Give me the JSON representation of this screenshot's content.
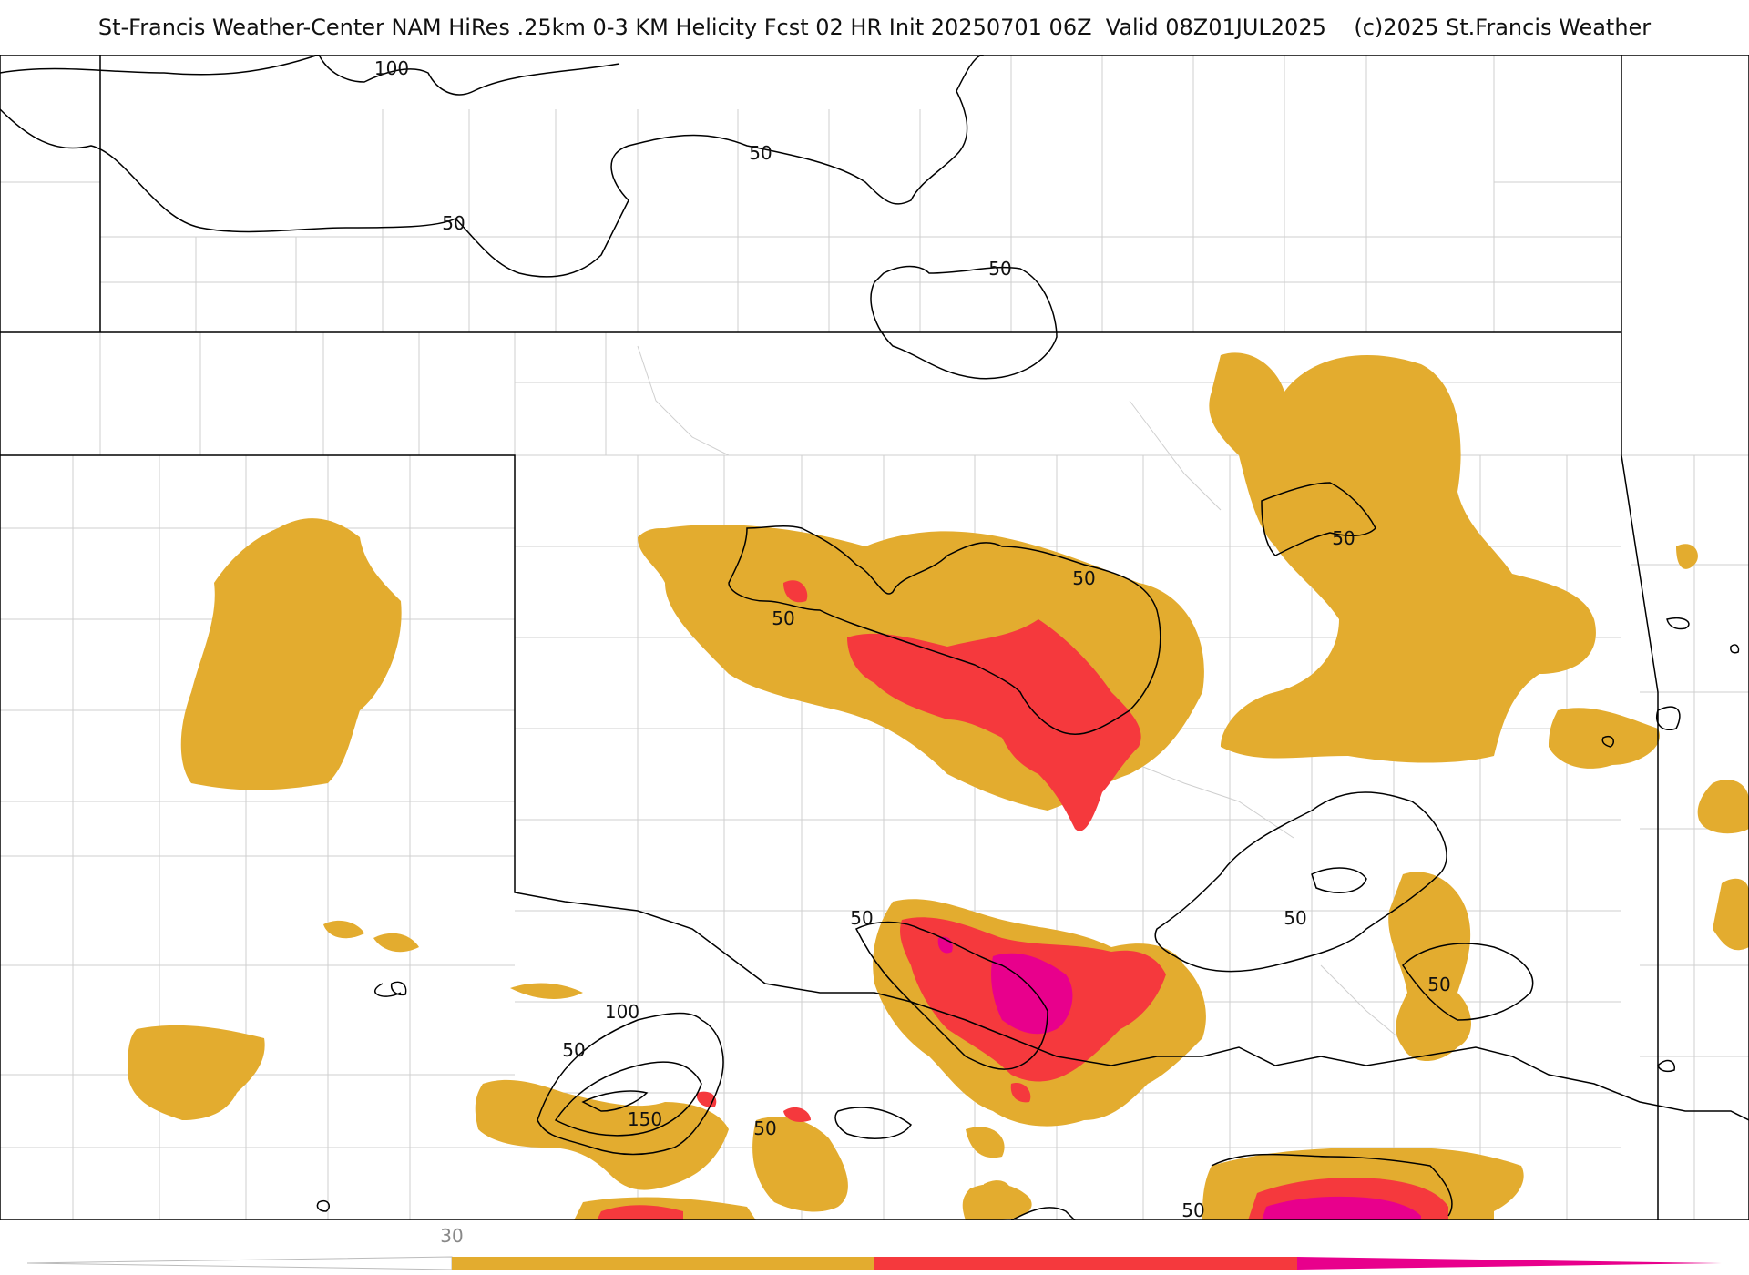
{
  "header": {
    "title": "St-Francis Weather-Center NAM HiRes .25km 0-3 KM Helicity Fcst 02 HR Init 20250701 06Z  Valid 08Z01JUL2025    (c)2025 St.Francis Weather"
  },
  "map": {
    "contour_labels": [
      "100",
      "50",
      "50",
      "50",
      "50",
      "50",
      "50",
      "50",
      "100",
      "50",
      "150",
      "50",
      "50",
      "50",
      "50"
    ]
  },
  "colorbar": {
    "tick_label": "30",
    "colors": [
      "#e3ac2f",
      "#f5393d",
      "#e8008c"
    ]
  }
}
